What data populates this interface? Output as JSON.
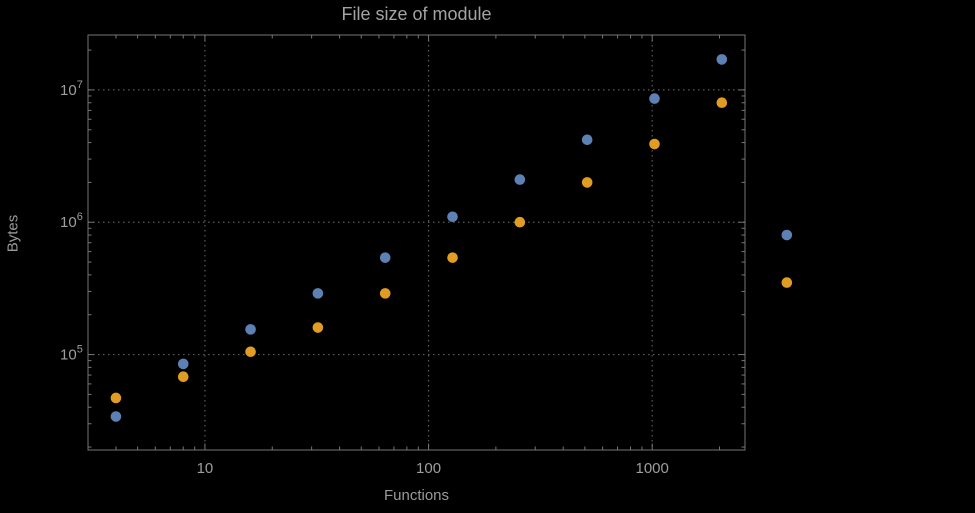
{
  "chart_data": {
    "type": "scatter",
    "title": "File size of module",
    "xlabel": "Functions",
    "ylabel": "Bytes",
    "x_scale": "log",
    "y_scale": "log",
    "x_range": [
      3,
      2600
    ],
    "y_range": [
      19000,
      26000000
    ],
    "x_ticks": [
      10,
      100,
      1000
    ],
    "x_tick_labels": [
      "10",
      "100",
      "1000"
    ],
    "y_ticks": [
      100000,
      1000000,
      10000000
    ],
    "y_tick_exponents": [
      "5",
      "6",
      "7"
    ],
    "grid": "dotted-major",
    "legend": "none",
    "x": [
      4,
      8,
      16,
      32,
      64,
      128,
      256,
      512,
      1024,
      2048,
      4000
    ],
    "series": [
      {
        "name": "blue",
        "color": "#5e81b5",
        "values": [
          34000,
          85000,
          155000,
          290000,
          540000,
          1100000,
          2100000,
          4200000,
          8600000,
          17000000,
          800000
        ]
      },
      {
        "name": "orange",
        "color": "#e19c24",
        "values": [
          47000,
          68000,
          105000,
          160000,
          290000,
          540000,
          1000000,
          2000000,
          3900000,
          8000000,
          350000
        ]
      }
    ]
  },
  "colors": {
    "background": "#000000",
    "text": "#9e9e9e",
    "frame": "#767676",
    "grid": "#5c5c5c"
  }
}
